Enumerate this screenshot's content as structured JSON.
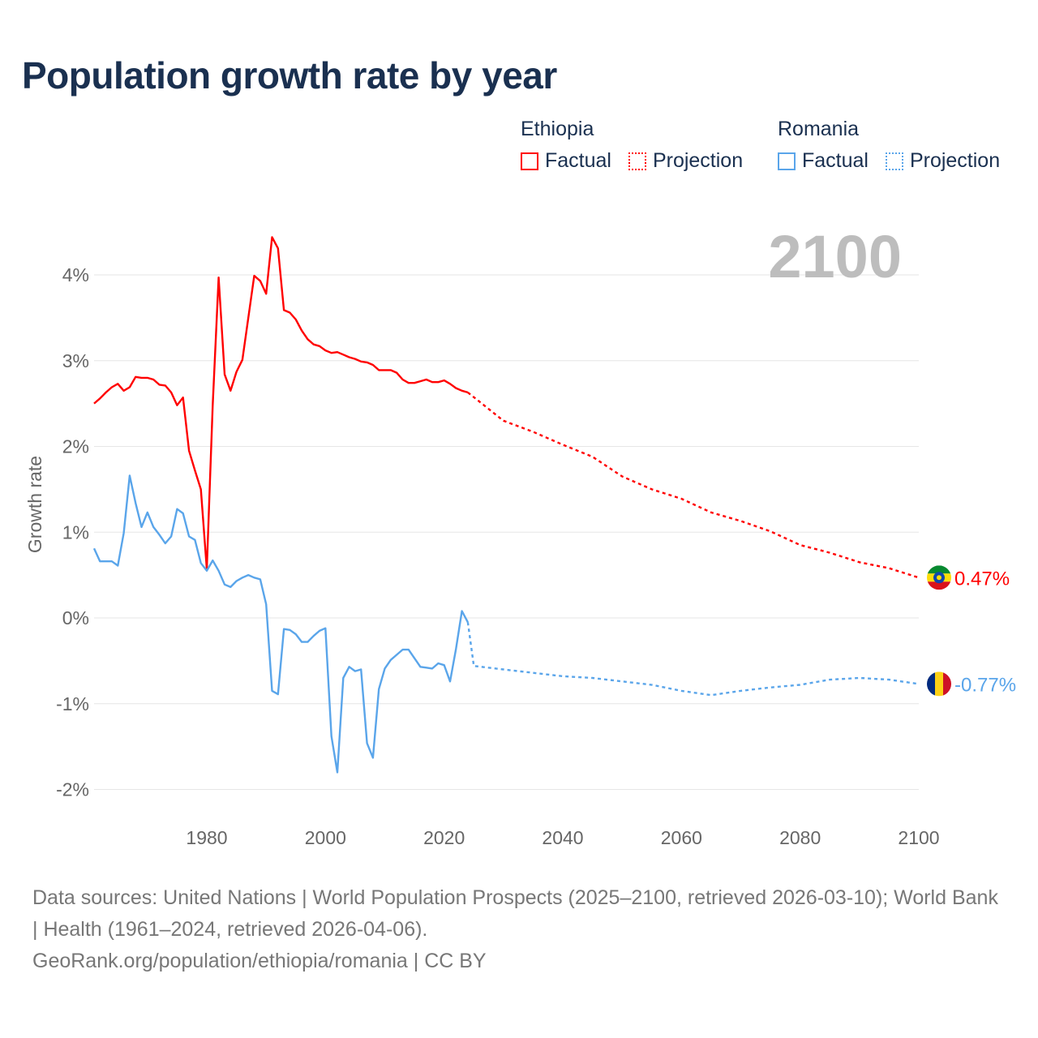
{
  "title": "Population growth rate by year",
  "legend": {
    "groups": [
      {
        "name": "Ethiopia",
        "factual": "Factual",
        "projection": "Projection",
        "color": "#ff0000"
      },
      {
        "name": "Romania",
        "factual": "Factual",
        "projection": "Projection",
        "color": "#5aa5ea"
      }
    ]
  },
  "footer": {
    "line1": "Data sources: United Nations | World Population Prospects (2025–2100, retrieved 2026-03-10); World Bank | Health (1961–2024, retrieved 2026-04-06).",
    "line2": "GeoRank.org/population/ethiopia/romania | CC BY"
  },
  "chart_data": {
    "type": "line",
    "title": "Population growth rate by year",
    "ylabel": "Growth rate",
    "xlabel": "",
    "current_year_label": "2100",
    "xlim": [
      1961,
      2100
    ],
    "ylim": [
      -2.2,
      4.6
    ],
    "x_ticks": [
      1980,
      2000,
      2020,
      2040,
      2060,
      2080,
      2100
    ],
    "y_ticks": [
      {
        "v": 4,
        "label": "4%"
      },
      {
        "v": 3,
        "label": "3%"
      },
      {
        "v": 2,
        "label": "2%"
      },
      {
        "v": 1,
        "label": "1%"
      },
      {
        "v": 0,
        "label": "0%"
      },
      {
        "v": -1,
        "label": "-1%"
      },
      {
        "v": -2,
        "label": "-2%"
      }
    ],
    "grid": true,
    "series": [
      {
        "name": "Ethiopia",
        "color": "#ff0000",
        "end_label": "0.47%",
        "factual": {
          "start_year": 1961,
          "values": [
            2.5,
            2.56,
            2.63,
            2.69,
            2.73,
            2.65,
            2.69,
            2.81,
            2.8,
            2.8,
            2.78,
            2.72,
            2.71,
            2.63,
            2.48,
            2.57,
            1.95,
            1.72,
            1.5,
            0.57,
            2.48,
            3.97,
            2.84,
            2.65,
            2.87,
            3.01,
            3.5,
            3.99,
            3.93,
            3.78,
            4.44,
            4.31,
            3.59,
            3.56,
            3.48,
            3.35,
            3.25,
            3.19,
            3.17,
            3.12,
            3.09,
            3.1,
            3.07,
            3.04,
            3.02,
            2.99,
            2.98,
            2.95,
            2.89,
            2.89,
            2.89,
            2.86,
            2.78,
            2.74,
            2.74,
            2.76,
            2.78,
            2.75,
            2.75,
            2.77,
            2.73,
            2.68,
            2.65,
            2.63
          ]
        },
        "projection": {
          "x": [
            2024,
            2030,
            2035,
            2040,
            2045,
            2050,
            2055,
            2060,
            2065,
            2070,
            2075,
            2080,
            2085,
            2090,
            2095,
            2100
          ],
          "values": [
            2.63,
            2.3,
            2.17,
            2.02,
            1.88,
            1.65,
            1.5,
            1.39,
            1.23,
            1.13,
            1.01,
            0.85,
            0.76,
            0.65,
            0.58,
            0.47
          ]
        }
      },
      {
        "name": "Romania",
        "color": "#5aa5ea",
        "end_label": "-0.77%",
        "factual": {
          "start_year": 1961,
          "values": [
            0.81,
            0.66,
            0.66,
            0.66,
            0.61,
            0.99,
            1.66,
            1.34,
            1.06,
            1.23,
            1.06,
            0.97,
            0.87,
            0.95,
            1.27,
            1.22,
            0.95,
            0.91,
            0.64,
            0.55,
            0.67,
            0.55,
            0.39,
            0.36,
            0.43,
            0.47,
            0.5,
            0.47,
            0.45,
            0.16,
            -0.85,
            -0.89,
            -0.13,
            -0.14,
            -0.19,
            -0.28,
            -0.28,
            -0.21,
            -0.15,
            -0.12,
            -1.38,
            -1.8,
            -0.7,
            -0.57,
            -0.62,
            -0.6,
            -1.46,
            -1.63,
            -0.83,
            -0.59,
            -0.49,
            -0.43,
            -0.37,
            -0.37,
            -0.47,
            -0.57,
            -0.58,
            -0.59,
            -0.53,
            -0.55,
            -0.74,
            -0.36,
            0.08,
            -0.05
          ]
        },
        "projection": {
          "x": [
            2024,
            2025,
            2030,
            2035,
            2040,
            2045,
            2050,
            2055,
            2060,
            2065,
            2070,
            2075,
            2080,
            2085,
            2090,
            2095,
            2100
          ],
          "values": [
            -0.05,
            -0.56,
            -0.6,
            -0.64,
            -0.68,
            -0.7,
            -0.74,
            -0.78,
            -0.85,
            -0.9,
            -0.85,
            -0.81,
            -0.78,
            -0.72,
            -0.7,
            -0.72,
            -0.77
          ]
        }
      }
    ]
  }
}
